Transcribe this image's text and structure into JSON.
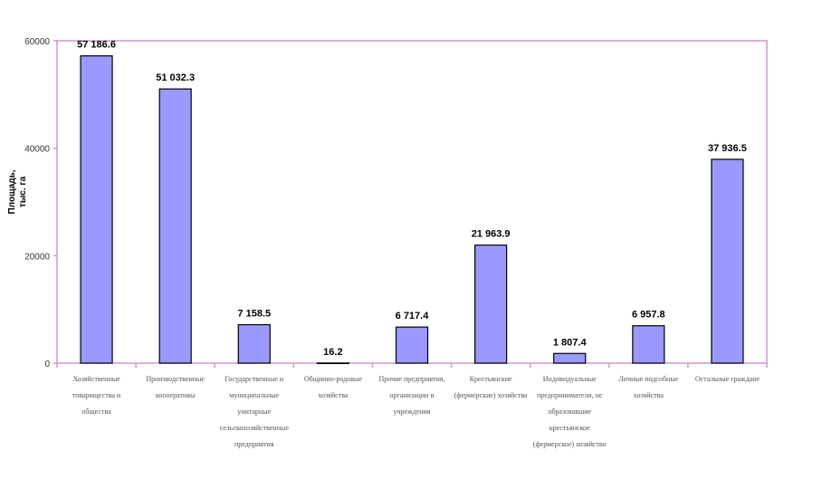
{
  "chart_data": {
    "type": "bar",
    "ylabel": "Площадь, тыс. га",
    "ylim": [
      0,
      60000
    ],
    "yticks": [
      "0",
      "20000",
      "40000",
      "60000"
    ],
    "grid": false,
    "colors": {
      "bar": "#9999ff",
      "bar_stroke": "#000000",
      "frame": "#cc99cc"
    },
    "categories": [
      "Хозяйственные товарищества и общества",
      "Производственные кооперативы",
      "Государственные и муниципальные унитарные сельскохозяйственные предприятия",
      "Общинно-родовые хозяйства",
      "Прочие предприятия, организации и учреждения",
      "Крестьянские (фермерские) хозяйства",
      "Индивидуальные предприниматели, не образовавшие крестьянское (фермерское) хозяйство",
      "Личные подсобные хозяйства",
      "Остальные граждане"
    ],
    "values": [
      57186.6,
      51032.3,
      7158.5,
      16.2,
      6717.4,
      21963.9,
      1807.4,
      6957.8,
      37936.5
    ],
    "value_labels": [
      "57 186.6",
      "51 032.3",
      "7 158.5",
      "16.2",
      "6 717.4",
      "21 963.9",
      "1 807.4",
      "6 957.8",
      "37 936.5"
    ]
  }
}
